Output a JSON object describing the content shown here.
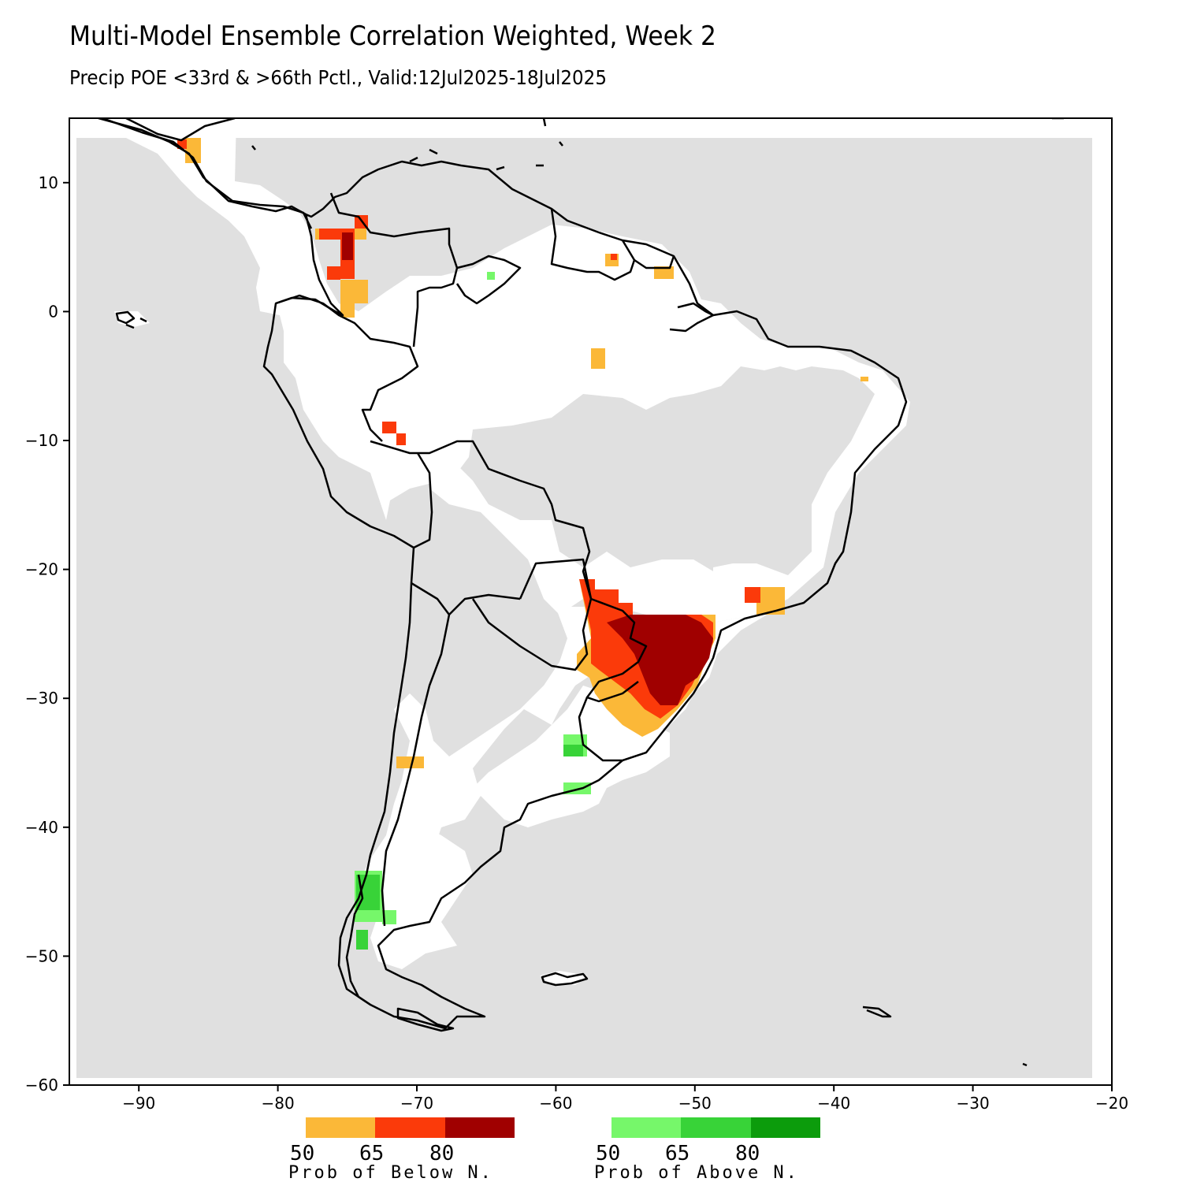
{
  "title": "Multi-Model Ensemble Correlation Weighted, Week 2",
  "subtitle": "Precip POE <33rd & >66th Pctl., Valid:12Jul2025-18Jul2025",
  "map": {
    "lon_range": [
      -95,
      -20
    ],
    "lat_range": [
      -60,
      15
    ],
    "x_ticks": [
      -90,
      -80,
      -70,
      -60,
      -50,
      -40,
      -30,
      -20
    ],
    "y_ticks": [
      10,
      0,
      -10,
      -20,
      -30,
      -40,
      -50,
      -60
    ],
    "x_tick_labels": [
      "−90",
      "−80",
      "−70",
      "−60",
      "−50",
      "−40",
      "−30",
      "−20"
    ],
    "y_tick_labels": [
      "10",
      "0",
      "−10",
      "−20",
      "−30",
      "−40",
      "−50",
      "−60"
    ],
    "background_color": "#e0e0e0",
    "neutral_color": "#ffffff"
  },
  "colors": {
    "below_50": "#fbb838",
    "below_65": "#fb3a0a",
    "below_80": "#a00000",
    "above_50": "#76f76a",
    "above_65": "#38d338",
    "above_80": "#0c9c0c"
  },
  "legend": {
    "below": {
      "labels": [
        "50",
        "65",
        "80"
      ],
      "caption": "Prob of Below N.",
      "colors": [
        "#fbb838",
        "#fb3a0a",
        "#a00000"
      ]
    },
    "above": {
      "labels": [
        "50",
        "65",
        "80"
      ],
      "caption": "Prob of Above N.",
      "colors": [
        "#76f76a",
        "#38d338",
        "#0c9c0c"
      ]
    }
  },
  "regions": {
    "below_near_normal": [
      {
        "name": "Southern Brazil / Paraguay / NE Argentina",
        "lon": [
          -57,
          -48
        ],
        "lat": [
          -33,
          -21
        ],
        "peak": "80"
      },
      {
        "name": "Colombia Andes",
        "lon": [
          -75.5,
          -73
        ],
        "lat": [
          -0.5,
          6.5
        ],
        "peak": "80"
      },
      {
        "name": "Central America Pacific coast",
        "lon": [
          -87,
          -85.5
        ],
        "lat": [
          11.5,
          13.5
        ],
        "peak": "65"
      },
      {
        "name": "Sao Paulo coast",
        "lon": [
          -46,
          -44
        ],
        "lat": [
          -23,
          -21
        ],
        "peak": "65"
      },
      {
        "name": "Peru / Acre border",
        "lon": [
          -71,
          -70
        ],
        "lat": [
          -10.5,
          -8.5
        ],
        "peak": "65"
      },
      {
        "name": "Guiana Shield",
        "lon": [
          -57.5,
          -56.5
        ],
        "lat": [
          3.5,
          4.5
        ],
        "peak": "65"
      },
      {
        "name": "French Guiana",
        "lon": [
          -53,
          -51.5
        ],
        "lat": [
          2.5,
          3.5
        ],
        "peak": "50"
      },
      {
        "name": "Central Amazon",
        "lon": [
          -57.5,
          -56.5
        ],
        "lat": [
          -4.5,
          -3
        ],
        "peak": "50"
      },
      {
        "name": "Central Chile / Mendoza",
        "lon": [
          -71,
          -69
        ],
        "lat": [
          -35.5,
          -34.5
        ],
        "peak": "50"
      },
      {
        "name": "NE Brazil tip",
        "lon": [
          -38,
          -37.5
        ],
        "lat": [
          -5.5,
          -5
        ],
        "peak": "50"
      }
    ],
    "above_near_normal": [
      {
        "name": "Southern Chile / Patagonia",
        "lon": [
          -75,
          -72
        ],
        "lat": [
          -49.5,
          -43.5
        ],
        "peak": "65"
      },
      {
        "name": "Buenos Aires",
        "lon": [
          -58,
          -56
        ],
        "lat": [
          -35,
          -33
        ],
        "peak": "65"
      },
      {
        "name": "Southern Buenos Aires",
        "lon": [
          -58,
          -56
        ],
        "lat": [
          -37.5,
          -36.5
        ],
        "peak": "50"
      },
      {
        "name": "Venezuela interior",
        "lon": [
          -65.5,
          -65
        ],
        "lat": [
          2.5,
          3
        ],
        "peak": "50"
      }
    ]
  }
}
